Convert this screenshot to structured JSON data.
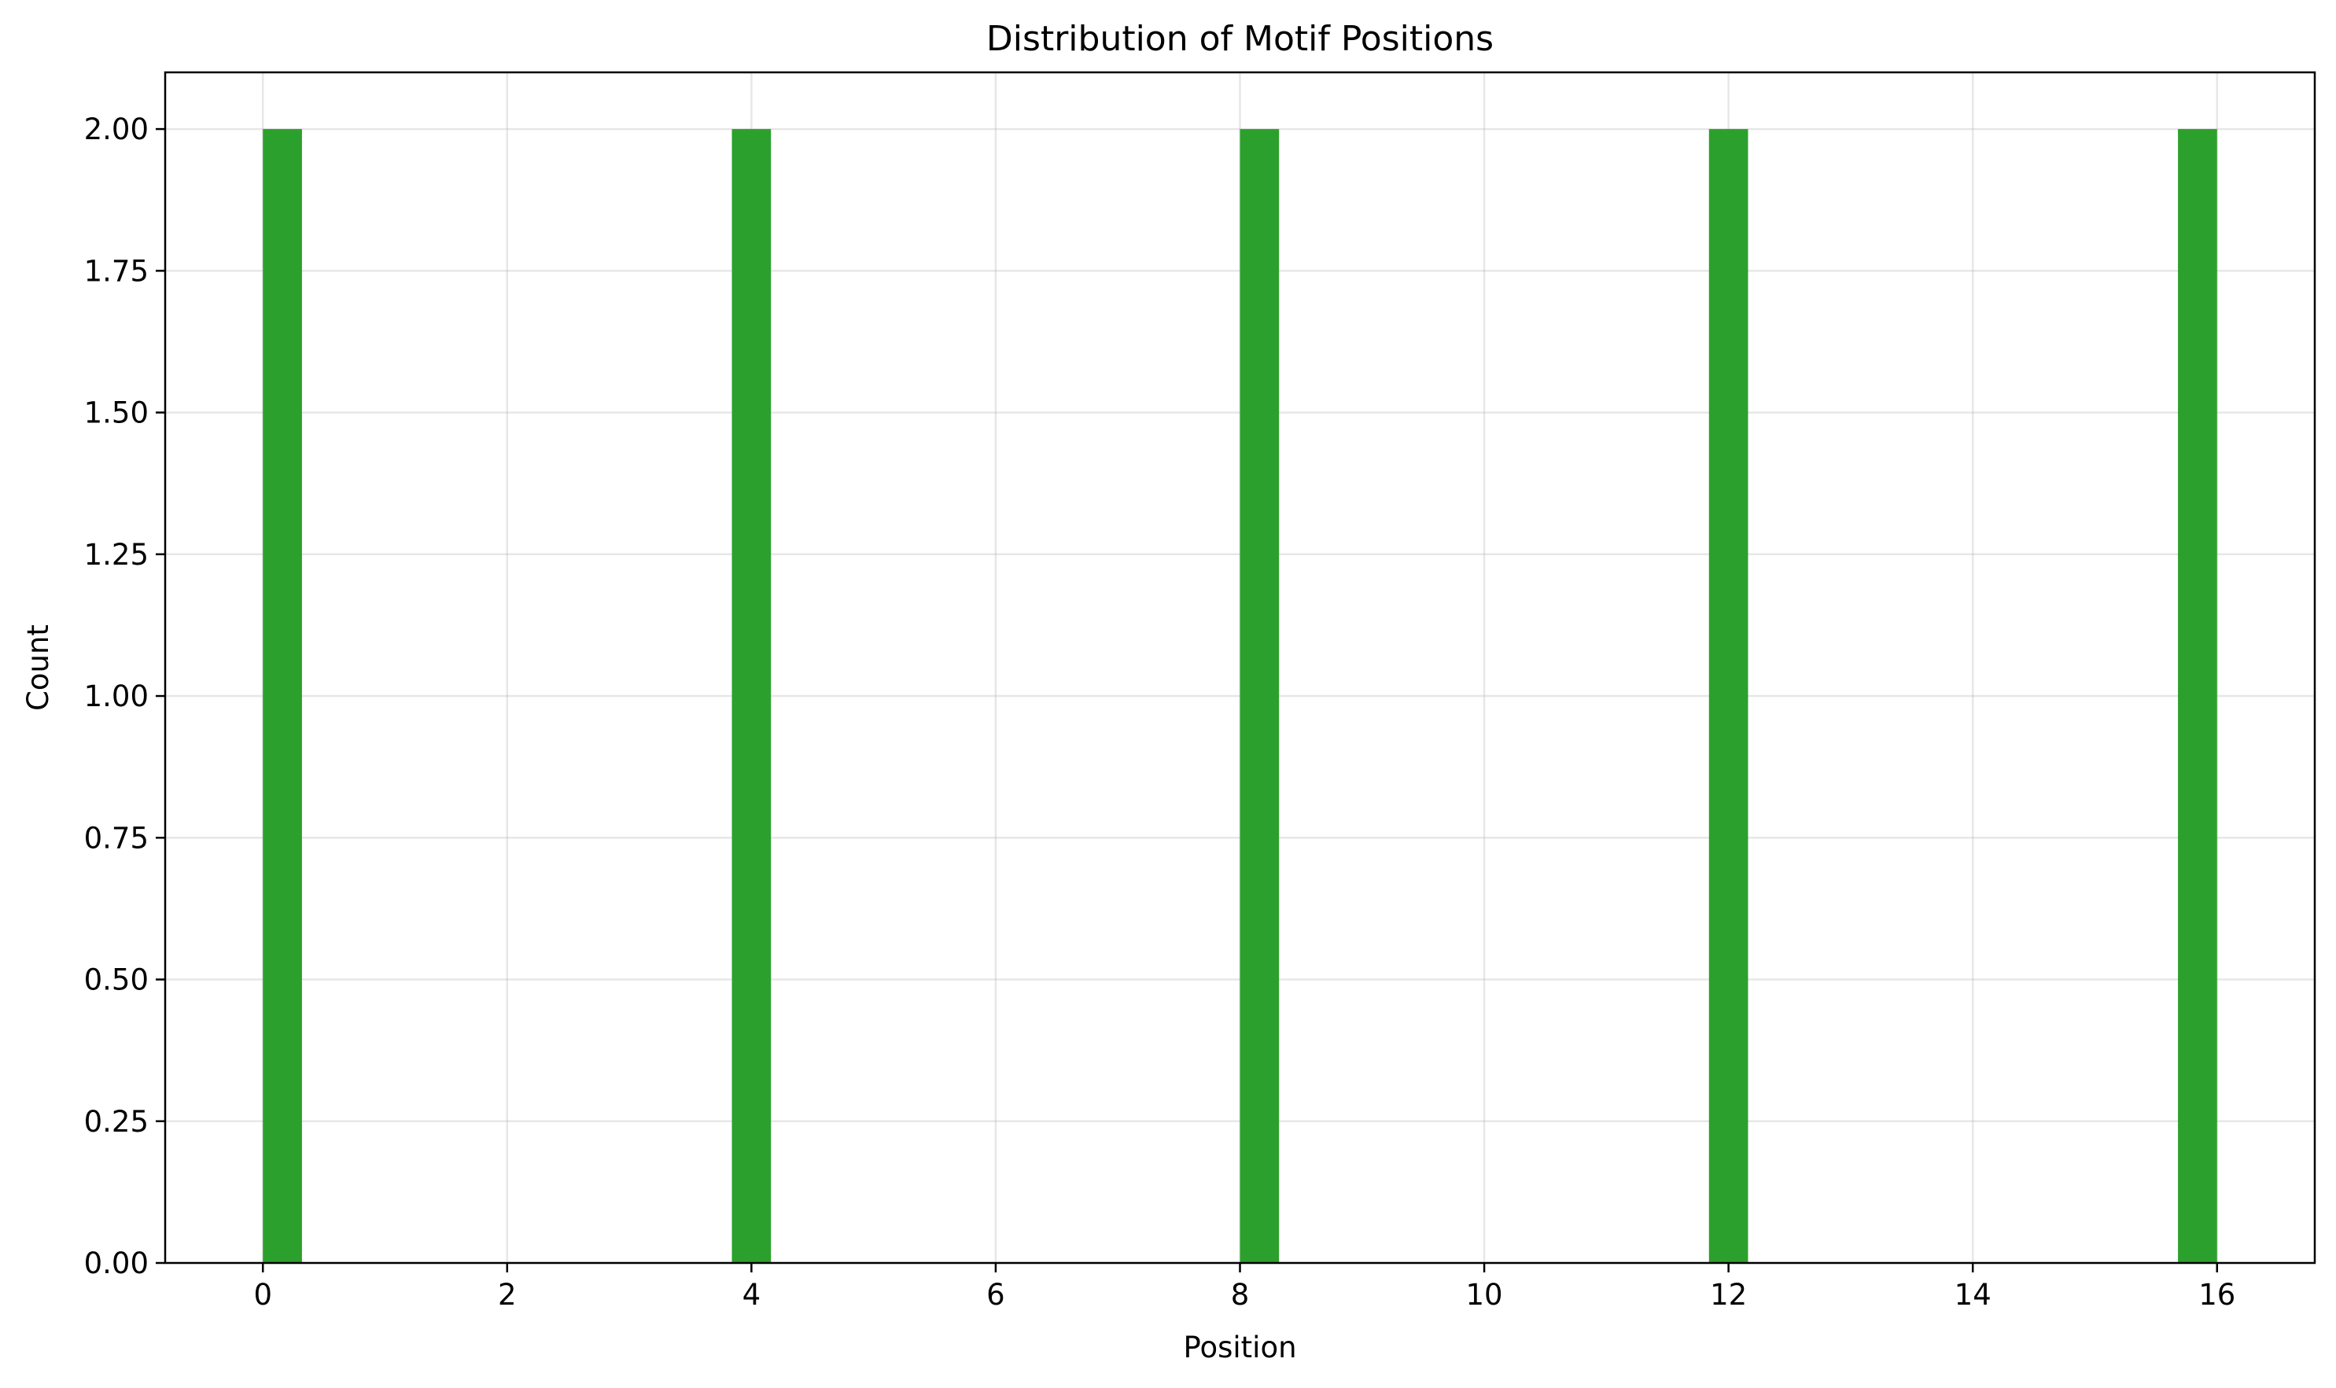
{
  "chart_data": {
    "type": "bar",
    "title": "Distribution of Motif Positions",
    "xlabel": "Position",
    "ylabel": "Count",
    "xlim": [
      -0.8,
      16.8
    ],
    "ylim": [
      0,
      2.1
    ],
    "x_ticks": [
      0,
      2,
      4,
      6,
      8,
      10,
      12,
      14,
      16
    ],
    "x_tick_labels": [
      "0",
      "2",
      "4",
      "6",
      "8",
      "10",
      "12",
      "14",
      "16"
    ],
    "y_ticks": [
      0,
      0.25,
      0.5,
      0.75,
      1.0,
      1.25,
      1.5,
      1.75,
      2.0
    ],
    "y_tick_labels": [
      "0.00",
      "0.25",
      "0.50",
      "0.75",
      "1.00",
      "1.25",
      "1.50",
      "1.75",
      "2.00"
    ],
    "bins": [
      {
        "start": 0.0,
        "end": 0.32,
        "count": 2
      },
      {
        "start": 3.84,
        "end": 4.16,
        "count": 2
      },
      {
        "start": 8.0,
        "end": 8.32,
        "count": 2
      },
      {
        "start": 11.84,
        "end": 12.16,
        "count": 2
      },
      {
        "start": 15.68,
        "end": 16.0,
        "count": 2
      }
    ],
    "bar_color": "#2ca02c",
    "grid": true,
    "legend": "none"
  }
}
